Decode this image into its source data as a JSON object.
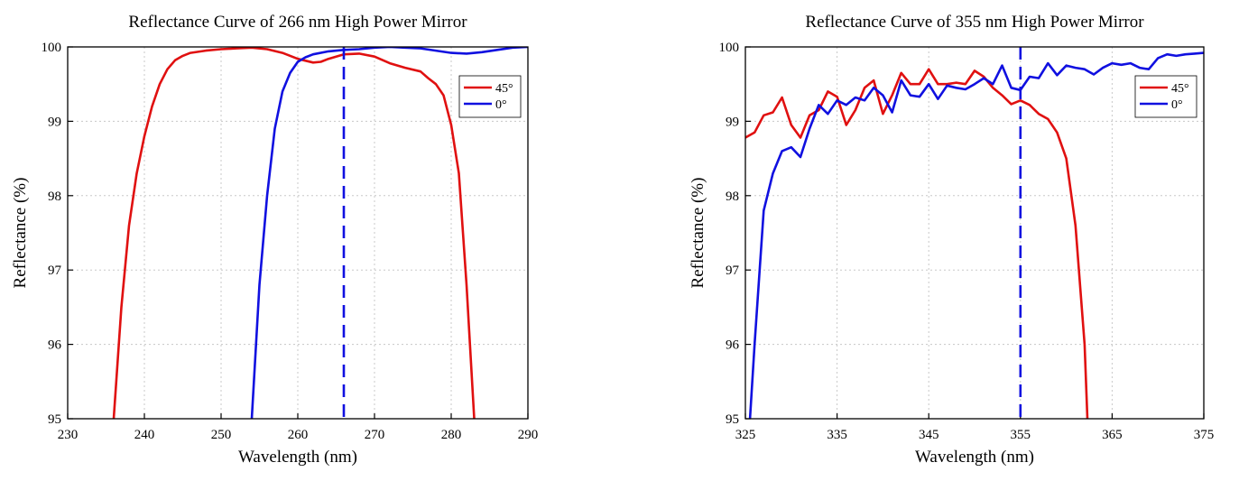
{
  "chart_data": [
    {
      "type": "line",
      "title": "Reflectance Curve of 266 nm High Power Mirror",
      "xlabel": "Wavelength (nm)",
      "ylabel": "Reflectance (%)",
      "xlim": [
        230,
        290
      ],
      "ylim": [
        95,
        100
      ],
      "xticks": [
        230,
        240,
        250,
        260,
        270,
        280,
        290
      ],
      "yticks": [
        95,
        96,
        97,
        98,
        99,
        100
      ],
      "grid": true,
      "legend_position": "top-right",
      "reference_line": {
        "x": 266,
        "color": "#1010e0",
        "style": "dashed"
      },
      "series": [
        {
          "name": "45°",
          "color": "#e01010",
          "x": [
            236,
            237,
            238,
            239,
            240,
            241,
            242,
            243,
            244,
            245,
            246,
            248,
            250,
            252,
            254,
            256,
            258,
            260,
            262,
            263,
            264,
            266,
            268,
            270,
            272,
            274,
            276,
            277,
            278,
            279,
            280,
            281,
            282,
            283
          ],
          "y": [
            95.0,
            96.5,
            97.6,
            98.3,
            98.8,
            99.2,
            99.5,
            99.7,
            99.82,
            99.88,
            99.92,
            99.95,
            99.97,
            99.98,
            99.99,
            99.97,
            99.92,
            99.84,
            99.79,
            99.8,
            99.84,
            99.9,
            99.91,
            99.87,
            99.78,
            99.72,
            99.67,
            99.58,
            99.5,
            99.35,
            98.95,
            98.3,
            96.8,
            95.0
          ]
        },
        {
          "name": "0°",
          "color": "#1010e0",
          "x": [
            254,
            255,
            256,
            257,
            258,
            259,
            260,
            261,
            262,
            264,
            266,
            268,
            270,
            272,
            274,
            276,
            278,
            280,
            282,
            284,
            286,
            288,
            290
          ],
          "y": [
            95.0,
            96.8,
            98.0,
            98.9,
            99.4,
            99.65,
            99.8,
            99.86,
            99.9,
            99.94,
            99.96,
            99.97,
            99.99,
            100.0,
            99.99,
            99.98,
            99.95,
            99.92,
            99.91,
            99.93,
            99.96,
            99.99,
            100.0
          ]
        }
      ]
    },
    {
      "type": "line",
      "title": "Reflectance Curve of 355 nm High Power Mirror",
      "xlabel": "Wavelength (nm)",
      "ylabel": "Reflectance (%)",
      "xlim": [
        325,
        375
      ],
      "ylim": [
        95,
        100
      ],
      "xticks": [
        325,
        335,
        345,
        355,
        365,
        375
      ],
      "yticks": [
        95,
        96,
        97,
        98,
        99,
        100
      ],
      "grid": true,
      "legend_position": "top-right",
      "reference_line": {
        "x": 355,
        "color": "#1010e0",
        "style": "dashed"
      },
      "series": [
        {
          "name": "45°",
          "color": "#e01010",
          "x": [
            325,
            326,
            327,
            328,
            329,
            330,
            331,
            332,
            333,
            334,
            335,
            336,
            337,
            338,
            339,
            340,
            341,
            342,
            343,
            344,
            345,
            346,
            347,
            348,
            349,
            350,
            351,
            352,
            353,
            354,
            355,
            356,
            357,
            358,
            359,
            360,
            361,
            362,
            362.3
          ],
          "y": [
            98.78,
            98.85,
            99.08,
            99.12,
            99.32,
            98.95,
            98.78,
            99.08,
            99.15,
            99.4,
            99.33,
            98.95,
            99.15,
            99.45,
            99.55,
            99.1,
            99.35,
            99.65,
            99.5,
            99.5,
            99.7,
            99.5,
            99.5,
            99.52,
            99.5,
            99.68,
            99.6,
            99.45,
            99.35,
            99.23,
            99.28,
            99.22,
            99.1,
            99.03,
            98.85,
            98.5,
            97.6,
            96.0,
            95.0
          ]
        },
        {
          "name": "0°",
          "color": "#1010e0",
          "x": [
            325.5,
            326,
            327,
            328,
            329,
            330,
            331,
            332,
            333,
            334,
            335,
            336,
            337,
            338,
            339,
            340,
            341,
            342,
            343,
            344,
            345,
            346,
            347,
            348,
            349,
            350,
            351,
            352,
            353,
            354,
            355,
            356,
            357,
            358,
            359,
            360,
            361,
            362,
            363,
            364,
            365,
            366,
            367,
            368,
            369,
            370,
            371,
            372,
            373,
            374,
            375
          ],
          "y": [
            95.0,
            96.0,
            97.8,
            98.3,
            98.6,
            98.65,
            98.52,
            98.9,
            99.22,
            99.1,
            99.28,
            99.22,
            99.32,
            99.28,
            99.45,
            99.35,
            99.12,
            99.55,
            99.35,
            99.33,
            99.5,
            99.3,
            99.48,
            99.45,
            99.43,
            99.5,
            99.58,
            99.5,
            99.75,
            99.45,
            99.42,
            99.6,
            99.58,
            99.78,
            99.62,
            99.75,
            99.72,
            99.7,
            99.63,
            99.72,
            99.78,
            99.76,
            99.78,
            99.72,
            99.7,
            99.85,
            99.9,
            99.88,
            99.9,
            99.91,
            99.92
          ]
        }
      ]
    }
  ]
}
